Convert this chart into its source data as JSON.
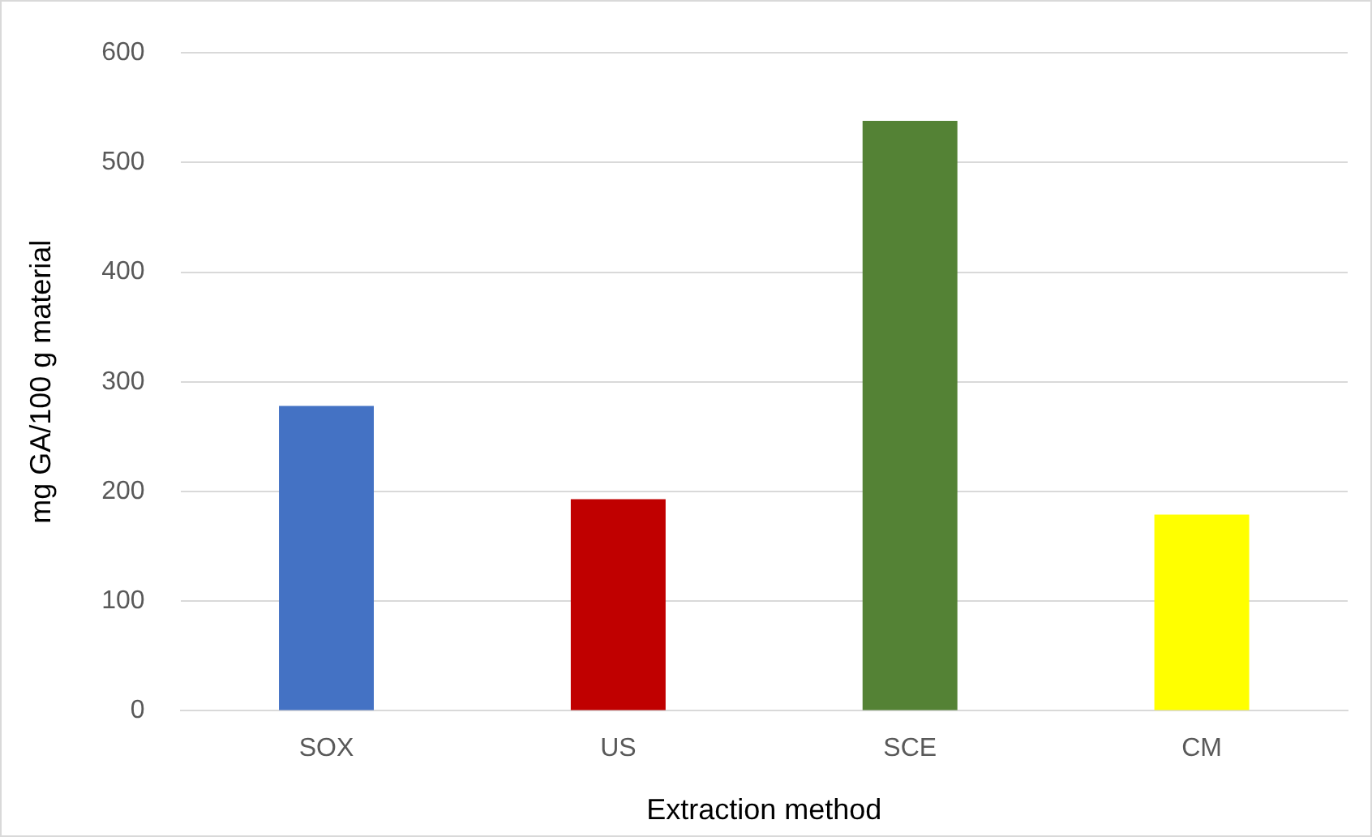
{
  "chart_data": {
    "type": "bar",
    "xlabel": "Extraction method",
    "ylabel": "mg GA/100 g material",
    "categories": [
      "SOX",
      "US",
      "SCE",
      "CM"
    ],
    "values": [
      278,
      193,
      538,
      179
    ],
    "colors": [
      "#4472c4",
      "#c00000",
      "#548235",
      "#ffff00"
    ],
    "ylim": [
      0,
      600
    ],
    "yticks": [
      0,
      100,
      200,
      300,
      400,
      500,
      600
    ],
    "grid": "y",
    "legend": false
  }
}
